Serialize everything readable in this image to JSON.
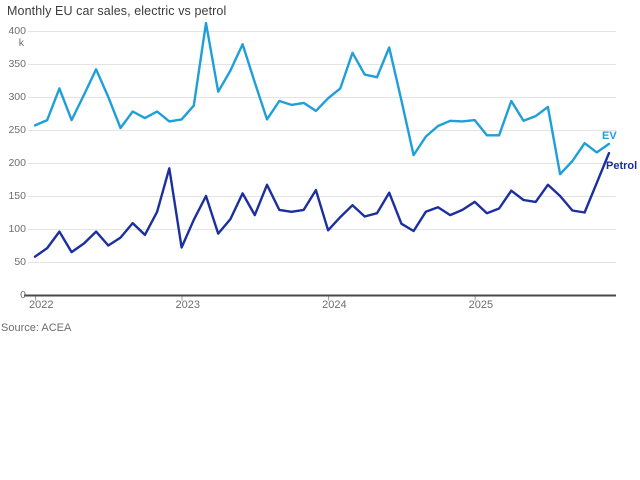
{
  "page": {
    "title": "Monthly EU car sales, electric vs petrol",
    "source": "Source: ACEA"
  },
  "chart_data": {
    "type": "line",
    "title": "Monthly EU car sales, electric vs petrol",
    "unit": "k",
    "grid": "horizontal",
    "legend_position": "line-end-labels",
    "ylim": [
      0,
      400
    ],
    "y_ticks": [
      0,
      50,
      100,
      150,
      200,
      250,
      300,
      350,
      400
    ],
    "x_year_labels": [
      "2022",
      "2023",
      "2024",
      "2025"
    ],
    "x_frequency": "monthly",
    "x_start": "Jan 2022",
    "x_end": "Dec 2025",
    "series": [
      {
        "name": "EV",
        "color": "#1f9fda",
        "values": [
          257,
          265,
          313,
          265,
          303,
          342,
          300,
          253,
          278,
          268,
          278,
          263,
          266,
          287,
          412,
          308,
          340,
          380,
          322,
          266,
          294,
          288,
          291,
          279,
          298,
          313,
          367,
          334,
          330,
          375,
          295,
          212,
          240,
          256,
          264,
          263,
          265,
          242,
          242,
          294,
          264,
          271,
          285,
          183,
          203,
          230,
          216,
          229
        ]
      },
      {
        "name": "Petrol",
        "color": "#1b2f9e",
        "values": [
          58,
          71,
          96,
          65,
          78,
          96,
          75,
          87,
          109,
          91,
          126,
          192,
          72,
          114,
          150,
          93,
          115,
          154,
          121,
          167,
          129,
          126,
          129,
          159,
          98,
          118,
          136,
          119,
          124,
          155,
          108,
          97,
          126,
          133,
          121,
          129,
          141,
          124,
          131,
          158,
          144,
          141,
          167,
          150,
          128,
          125,
          170,
          215
        ]
      }
    ]
  },
  "colors": {
    "background": "#ffffff",
    "title_text": "#3d3d3d",
    "tick_text": "#6e6e6e",
    "gridline": "#e4e4e4",
    "axis_line": "#4a4a4a",
    "year_tick": "#999999"
  }
}
